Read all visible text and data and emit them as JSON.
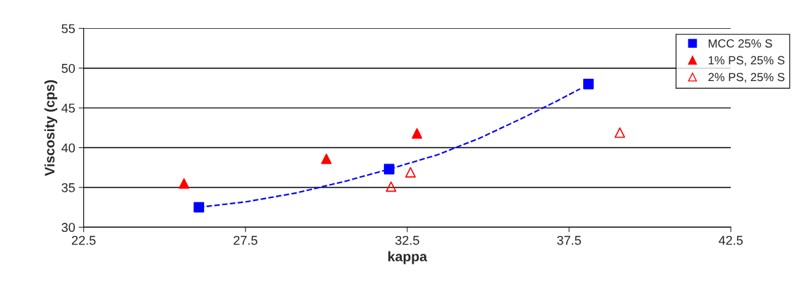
{
  "chart_data": {
    "type": "scatter",
    "xlabel": "kappa",
    "ylabel": "Viscosity (cps)",
    "xlim": [
      22.5,
      42.5
    ],
    "xticks": [
      22.5,
      27.5,
      32.5,
      37.5,
      42.5
    ],
    "ylim": [
      30,
      55
    ],
    "yticks": [
      30,
      35,
      40,
      45,
      50,
      55
    ],
    "grid": "y",
    "legend": "top right",
    "series": [
      {
        "name": "MCC 25% S",
        "color": "#0000ff",
        "marker": "square",
        "x": [
          26.06,
          31.94,
          38.1
        ],
        "values": [
          32.5,
          37.3,
          48.0
        ]
      },
      {
        "name": "1% PS, 25% S",
        "color": "#ff0000",
        "marker": "triangle",
        "x": [
          25.6,
          30.0,
          32.8
        ],
        "values": [
          35.5,
          38.6,
          41.8
        ]
      },
      {
        "name": "2% PS, 25% S",
        "color": "#ff0000",
        "marker": "triangle-open",
        "x": [
          32.0,
          32.6,
          39.07
        ],
        "values": [
          35.1,
          36.9,
          41.9
        ]
      },
      {
        "type": "line",
        "color": "#0000ff",
        "line_style": "dashed",
        "marker": "none",
        "x": [
          26.06,
          27.53,
          29.06,
          30.6,
          31.94,
          33.43,
          34.74,
          36.05,
          37.14,
          37.84
        ],
        "values": [
          32.5,
          33.2,
          34.3,
          35.8,
          37.3,
          39.1,
          41.2,
          43.7,
          45.9,
          47.4
        ]
      }
    ]
  }
}
